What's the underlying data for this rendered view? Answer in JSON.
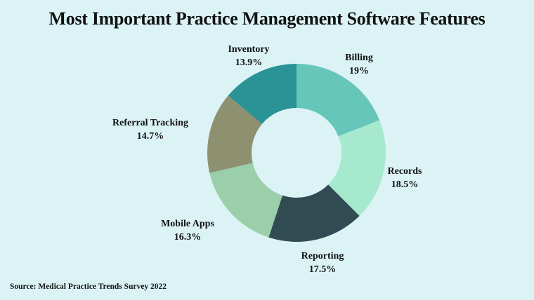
{
  "title": "Most Important Practice Management Software Features",
  "source": "Source: Medical Practice Trends Survey 2022",
  "chart_data": {
    "type": "pie",
    "donut": true,
    "title": "Most Important Practice Management Software Features",
    "categories": [
      "Billing",
      "Records",
      "Reporting",
      "Mobile Apps",
      "Referral Tracking",
      "Inventory"
    ],
    "values": [
      19,
      18.5,
      17.5,
      16.3,
      14.7,
      13.9
    ],
    "value_labels": [
      "19%",
      "18.5%",
      "17.5%",
      "16.3%",
      "14.7%",
      "13.9%"
    ],
    "colors": [
      "#66c6ba",
      "#a6e9cf",
      "#314b53",
      "#9acfa9",
      "#8e9170",
      "#2a9396"
    ],
    "start_angle": "12 o'clock, clockwise",
    "legend": "none (direct labels)",
    "annotation": "Source: Medical Practice Trends Survey 2022"
  },
  "labels": [
    {
      "name": "Billing",
      "pct": "19%"
    },
    {
      "name": "Records",
      "pct": "18.5%"
    },
    {
      "name": "Reporting",
      "pct": "17.5%"
    },
    {
      "name": "Mobile Apps",
      "pct": "16.3%"
    },
    {
      "name": "Referral Tracking",
      "pct": "14.7%"
    },
    {
      "name": "Inventory",
      "pct": "13.9%"
    }
  ]
}
